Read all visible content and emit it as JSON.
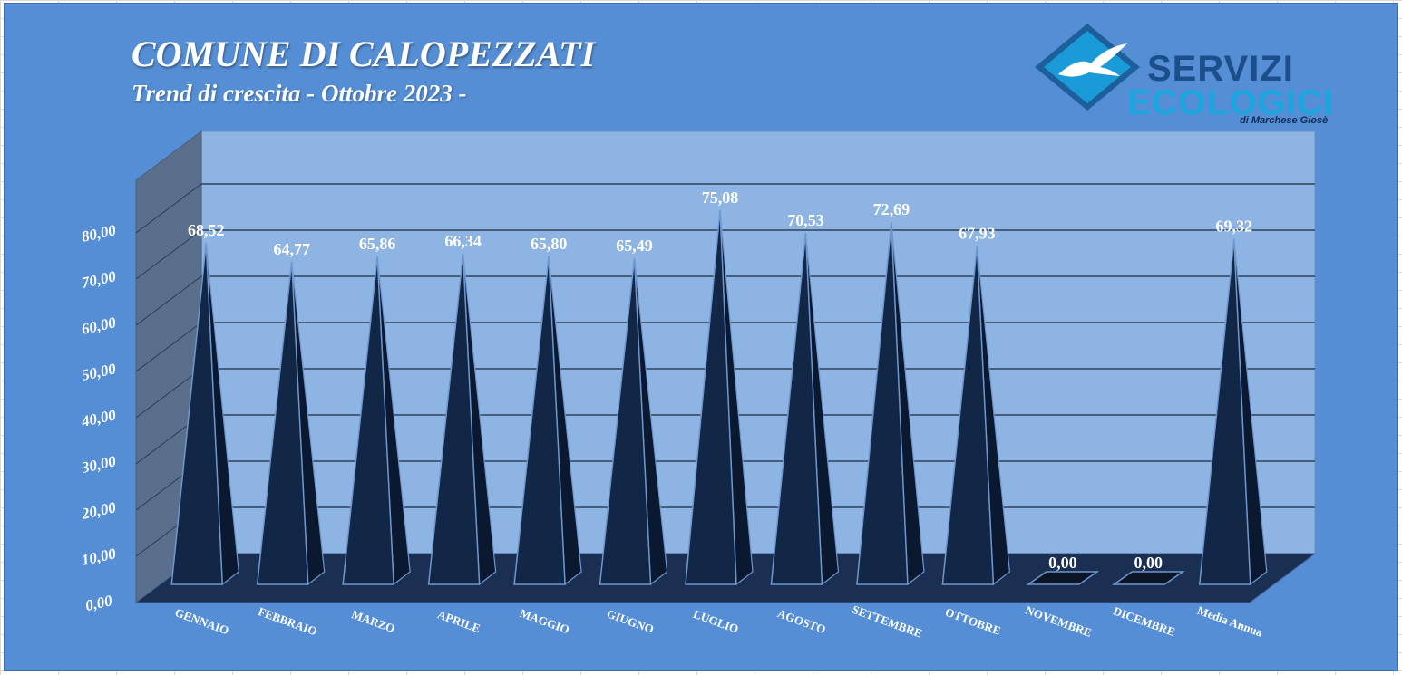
{
  "chart_data": {
    "type": "bar",
    "title": "COMUNE DI CALOPEZZATI",
    "subtitle": "Trend di crescita - Ottobre 2023 -",
    "categories": [
      "GENNAIO",
      "FEBBRAIO",
      "MARZO",
      "APRILE",
      "MAGGIO",
      "GIUGNO",
      "LUGLIO",
      "AGOSTO",
      "SETTEMBRE",
      "OTTOBRE",
      "NOVEMBRE",
      "DICEMBRE",
      "Media Annua"
    ],
    "values": [
      68.52,
      64.77,
      65.86,
      66.34,
      65.8,
      65.49,
      75.08,
      70.53,
      72.69,
      67.93,
      0.0,
      0.0,
      69.32
    ],
    "data_labels": [
      "68,52",
      "64,77",
      "65,86",
      "66,34",
      "65,80",
      "65,49",
      "75,08",
      "70,53",
      "72,69",
      "67,93",
      "0,00",
      "0,00",
      "69,32"
    ],
    "ylim": [
      0,
      80
    ],
    "yticks": [
      "0,00",
      "10,00",
      "20,00",
      "30,00",
      "40,00",
      "50,00",
      "60,00",
      "70,00",
      "80,00"
    ],
    "grid": true,
    "legend": "none",
    "bar_shape": "3d-pyramid",
    "colors": {
      "background": "#558ed5",
      "back_wall": "#8db4e2",
      "side_wall": "#5a6f8c",
      "floor": "#1a2f52",
      "bar_front": "#122646",
      "bar_side": "#0a1830",
      "bar_edge": "#6f97cf"
    }
  },
  "logo": {
    "line1": "SERVIZI",
    "line2": "ECOLOGICI",
    "line3": "di Marchese Giosè",
    "icon": "seagull-diamond-icon"
  }
}
